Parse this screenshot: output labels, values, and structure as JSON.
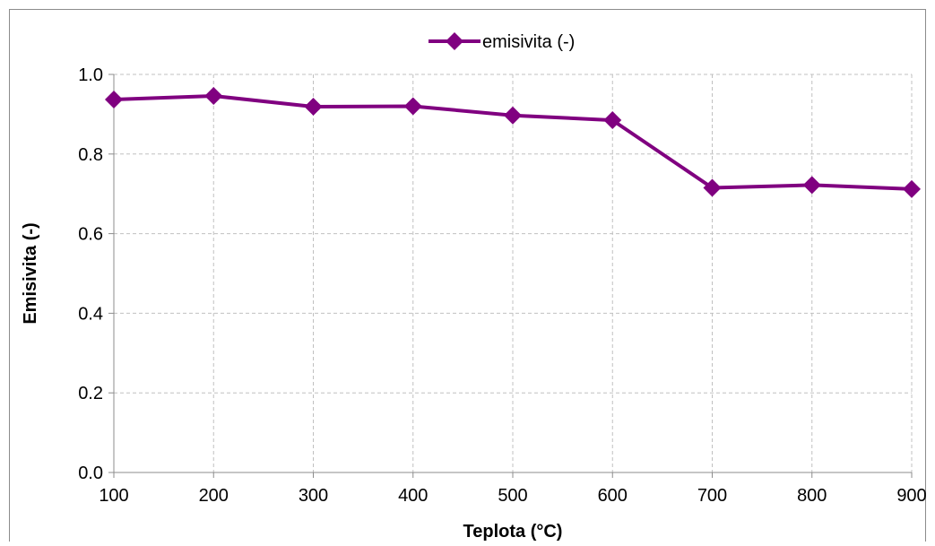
{
  "chart_data": {
    "type": "line",
    "title": "",
    "xlabel": "Teplota (°C)",
    "ylabel": "Emisivita (-)",
    "xlim": [
      100,
      900
    ],
    "ylim": [
      0.0,
      1.0
    ],
    "x_ticks": [
      "100",
      "200",
      "300",
      "400",
      "500",
      "600",
      "700",
      "800",
      "900"
    ],
    "y_ticks": [
      "0.0",
      "0.2",
      "0.4",
      "0.6",
      "0.8",
      "1.0"
    ],
    "grid": true,
    "legend_position": "top-center",
    "series": [
      {
        "name": "emisivita (-)",
        "color": "#800080",
        "marker": "diamond",
        "x": [
          100,
          200,
          300,
          400,
          500,
          600,
          700,
          800,
          900
        ],
        "y": [
          0.937,
          0.946,
          0.919,
          0.92,
          0.897,
          0.885,
          0.715,
          0.722,
          0.712
        ]
      }
    ]
  }
}
